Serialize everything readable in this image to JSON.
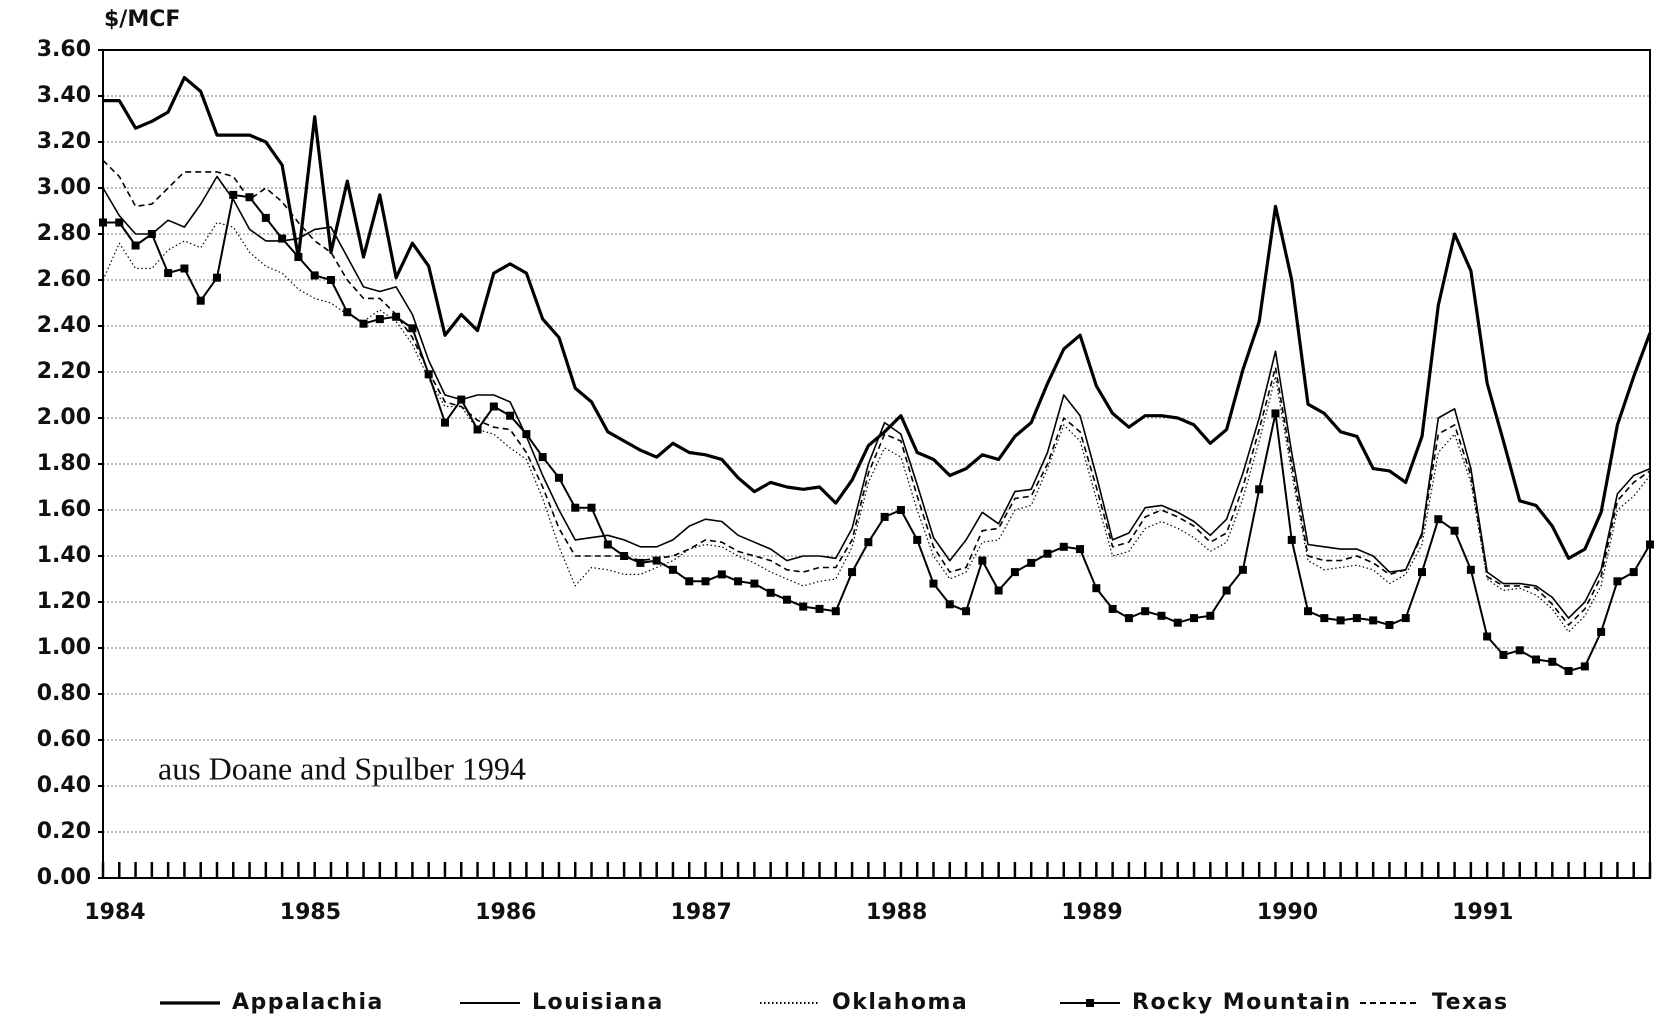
{
  "chart_data": {
    "type": "line",
    "y_label": "$/MCF",
    "annotation": "aus Doane and Spulber 1994",
    "categories": [
      "1984",
      null,
      null,
      null,
      null,
      null,
      null,
      null,
      null,
      null,
      null,
      null,
      "1985",
      null,
      null,
      null,
      null,
      null,
      null,
      null,
      null,
      null,
      null,
      null,
      "1986",
      null,
      null,
      null,
      null,
      null,
      null,
      null,
      null,
      null,
      null,
      null,
      "1987",
      null,
      null,
      null,
      null,
      null,
      null,
      null,
      null,
      null,
      null,
      null,
      "1988",
      null,
      null,
      null,
      null,
      null,
      null,
      null,
      null,
      null,
      null,
      null,
      "1989",
      null,
      null,
      null,
      null,
      null,
      null,
      null,
      null,
      null,
      null,
      null,
      "1990",
      null,
      null,
      null,
      null,
      null,
      null,
      null,
      null,
      null,
      null,
      null,
      "1991",
      null,
      null,
      null,
      null,
      null,
      null,
      null,
      null,
      null,
      null,
      null
    ],
    "ylim": [
      0,
      3.6
    ],
    "yticks": [
      {
        "value": 0,
        "label": "0.00"
      },
      {
        "value": 0.2,
        "label": "0.20"
      },
      {
        "value": 0.4,
        "label": "0.40"
      },
      {
        "value": 0.6,
        "label": "0.60"
      },
      {
        "value": 0.8,
        "label": "0.80"
      },
      {
        "value": 1,
        "label": "1.00"
      },
      {
        "value": 1.2,
        "label": "1.20"
      },
      {
        "value": 1.4,
        "label": "1.40"
      },
      {
        "value": 1.6,
        "label": "1.60"
      },
      {
        "value": 1.8,
        "label": "1.80"
      },
      {
        "value": 2,
        "label": "2.00"
      },
      {
        "value": 2.2,
        "label": "2.20"
      },
      {
        "value": 2.4,
        "label": "2.40"
      },
      {
        "value": 2.6,
        "label": "2.60"
      },
      {
        "value": 2.8,
        "label": "2.80"
      },
      {
        "value": 3,
        "label": "3.00"
      },
      {
        "value": 3.2,
        "label": "3.20"
      },
      {
        "value": 3.4,
        "label": "3.40"
      },
      {
        "value": 3.6,
        "label": "3.60"
      }
    ],
    "grid": true,
    "legend": "bottom",
    "series": [
      {
        "name": "Appalachia",
        "color": "#000000",
        "line_style": "thick",
        "values": [
          3.38,
          3.38,
          3.26,
          3.29,
          3.33,
          3.48,
          3.42,
          3.23,
          3.23,
          3.23,
          3.2,
          3.1,
          2.7,
          3.31,
          2.72,
          3.03,
          2.7,
          2.97,
          2.61,
          2.76,
          2.66,
          2.36,
          2.45,
          2.38,
          2.63,
          2.67,
          2.63,
          2.43,
          2.35,
          2.13,
          2.07,
          1.94,
          1.9,
          1.86,
          1.83,
          1.89,
          1.85,
          1.84,
          1.82,
          1.74,
          1.68,
          1.72,
          1.7,
          1.69,
          1.7,
          1.63,
          1.73,
          1.88,
          1.94,
          2.01,
          1.85,
          1.82,
          1.75,
          1.78,
          1.84,
          1.82,
          1.92,
          1.98,
          2.15,
          2.3,
          2.36,
          2.14,
          2.02,
          1.96,
          2.01,
          2.01,
          2.0,
          1.97,
          1.89,
          1.95,
          2.21,
          2.42,
          2.92,
          2.6,
          2.06,
          2.02,
          1.94,
          1.92,
          1.78,
          1.77,
          1.72,
          1.92,
          2.49,
          2.8,
          2.64,
          2.15,
          1.9,
          1.64,
          1.62,
          1.53,
          1.39,
          1.43,
          1.59,
          1.97,
          2.18,
          2.37
        ]
      },
      {
        "name": "Louisiana",
        "color": "#000000",
        "line_style": "solid",
        "values": [
          3.0,
          2.88,
          2.8,
          2.8,
          2.86,
          2.83,
          2.93,
          3.05,
          2.95,
          2.82,
          2.77,
          2.77,
          2.78,
          2.82,
          2.83,
          2.7,
          2.57,
          2.55,
          2.57,
          2.45,
          2.25,
          2.1,
          2.08,
          2.1,
          2.1,
          2.07,
          1.92,
          1.75,
          1.6,
          1.47,
          1.48,
          1.49,
          1.47,
          1.44,
          1.44,
          1.47,
          1.53,
          1.56,
          1.55,
          1.49,
          1.46,
          1.43,
          1.38,
          1.4,
          1.4,
          1.39,
          1.52,
          1.8,
          1.98,
          1.93,
          1.71,
          1.48,
          1.38,
          1.47,
          1.59,
          1.54,
          1.68,
          1.69,
          1.85,
          2.1,
          2.01,
          1.75,
          1.47,
          1.5,
          1.61,
          1.62,
          1.59,
          1.55,
          1.49,
          1.56,
          1.76,
          2.0,
          2.29,
          1.85,
          1.45,
          1.44,
          1.43,
          1.43,
          1.4,
          1.33,
          1.34,
          1.5,
          2.0,
          2.04,
          1.78,
          1.33,
          1.28,
          1.28,
          1.27,
          1.22,
          1.13,
          1.2,
          1.34,
          1.67,
          1.75,
          1.78
        ]
      },
      {
        "name": "Oklahoma",
        "color": "#000000",
        "line_style": "dotted",
        "values": [
          2.6,
          2.76,
          2.65,
          2.65,
          2.73,
          2.77,
          2.74,
          2.85,
          2.83,
          2.72,
          2.66,
          2.63,
          2.56,
          2.52,
          2.5,
          2.45,
          2.42,
          2.47,
          2.42,
          2.32,
          2.17,
          2.05,
          2.05,
          1.95,
          1.93,
          1.87,
          1.82,
          1.65,
          1.44,
          1.27,
          1.35,
          1.34,
          1.32,
          1.32,
          1.35,
          1.38,
          1.43,
          1.45,
          1.44,
          1.4,
          1.37,
          1.33,
          1.3,
          1.27,
          1.29,
          1.3,
          1.44,
          1.72,
          1.87,
          1.83,
          1.6,
          1.4,
          1.3,
          1.33,
          1.46,
          1.47,
          1.6,
          1.62,
          1.78,
          1.97,
          1.9,
          1.65,
          1.4,
          1.42,
          1.52,
          1.55,
          1.52,
          1.48,
          1.42,
          1.46,
          1.65,
          1.9,
          2.18,
          1.76,
          1.38,
          1.34,
          1.35,
          1.36,
          1.34,
          1.28,
          1.32,
          1.45,
          1.85,
          1.93,
          1.72,
          1.3,
          1.25,
          1.26,
          1.23,
          1.17,
          1.07,
          1.14,
          1.27,
          1.6,
          1.66,
          1.75
        ]
      },
      {
        "name": "Rocky Mountain",
        "color": "#000000",
        "line_style": "marker",
        "values": [
          2.85,
          2.85,
          2.75,
          2.8,
          2.63,
          2.65,
          2.51,
          2.61,
          2.97,
          2.96,
          2.87,
          2.78,
          2.7,
          2.62,
          2.6,
          2.46,
          2.41,
          2.43,
          2.44,
          2.39,
          2.19,
          1.98,
          2.08,
          1.95,
          2.05,
          2.01,
          1.93,
          1.83,
          1.74,
          1.61,
          1.61,
          1.45,
          1.4,
          1.37,
          1.38,
          1.34,
          1.29,
          1.29,
          1.32,
          1.29,
          1.28,
          1.24,
          1.21,
          1.18,
          1.17,
          1.16,
          1.33,
          1.46,
          1.57,
          1.6,
          1.47,
          1.28,
          1.19,
          1.16,
          1.38,
          1.25,
          1.33,
          1.37,
          1.41,
          1.44,
          1.43,
          1.26,
          1.17,
          1.13,
          1.16,
          1.14,
          1.11,
          1.13,
          1.14,
          1.25,
          1.34,
          1.69,
          2.02,
          1.47,
          1.16,
          1.13,
          1.12,
          1.13,
          1.12,
          1.1,
          1.13,
          1.33,
          1.56,
          1.51,
          1.34,
          1.05,
          0.97,
          0.99,
          0.95,
          0.94,
          0.9,
          0.92,
          1.07,
          1.29,
          1.33,
          1.45
        ]
      },
      {
        "name": "Texas",
        "color": "#000000",
        "line_style": "dashed",
        "values": [
          3.12,
          3.05,
          2.92,
          2.93,
          3.0,
          3.07,
          3.07,
          3.07,
          3.05,
          2.95,
          3.0,
          2.94,
          2.85,
          2.77,
          2.72,
          2.6,
          2.52,
          2.52,
          2.45,
          2.35,
          2.2,
          2.07,
          2.05,
          1.99,
          1.96,
          1.95,
          1.85,
          1.7,
          1.52,
          1.4,
          1.4,
          1.4,
          1.4,
          1.38,
          1.39,
          1.4,
          1.43,
          1.47,
          1.46,
          1.42,
          1.4,
          1.38,
          1.34,
          1.33,
          1.35,
          1.35,
          1.47,
          1.76,
          1.93,
          1.9,
          1.66,
          1.44,
          1.33,
          1.35,
          1.51,
          1.52,
          1.65,
          1.66,
          1.8,
          2.0,
          1.94,
          1.7,
          1.44,
          1.46,
          1.57,
          1.6,
          1.57,
          1.53,
          1.46,
          1.5,
          1.7,
          1.95,
          2.22,
          1.8,
          1.4,
          1.38,
          1.38,
          1.4,
          1.37,
          1.32,
          1.34,
          1.49,
          1.93,
          1.97,
          1.75,
          1.31,
          1.27,
          1.27,
          1.26,
          1.19,
          1.1,
          1.17,
          1.31,
          1.64,
          1.72,
          1.77
        ]
      }
    ]
  }
}
